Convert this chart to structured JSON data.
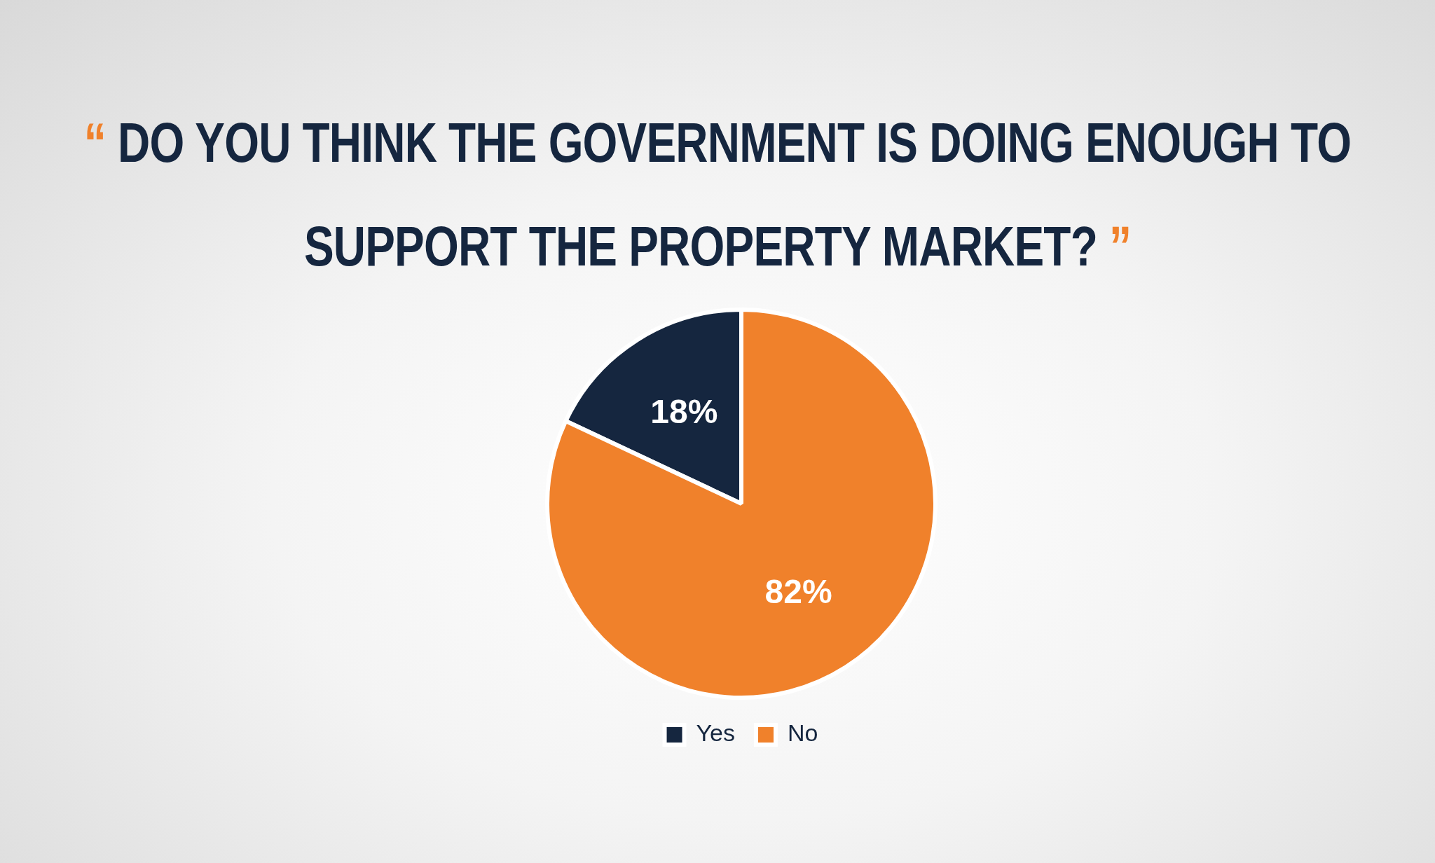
{
  "chart_data": {
    "type": "pie",
    "title": "“ DO YOU THINK THE GOVERNMENT IS DOING ENOUGH TO SUPPORT THE PROPERTY MARKET? ”",
    "categories": [
      "Yes",
      "No"
    ],
    "values": [
      18,
      82
    ],
    "value_labels": [
      "18%",
      "82%"
    ],
    "colors": [
      "#15263f",
      "#f0812b"
    ],
    "legend": "bottom"
  }
}
